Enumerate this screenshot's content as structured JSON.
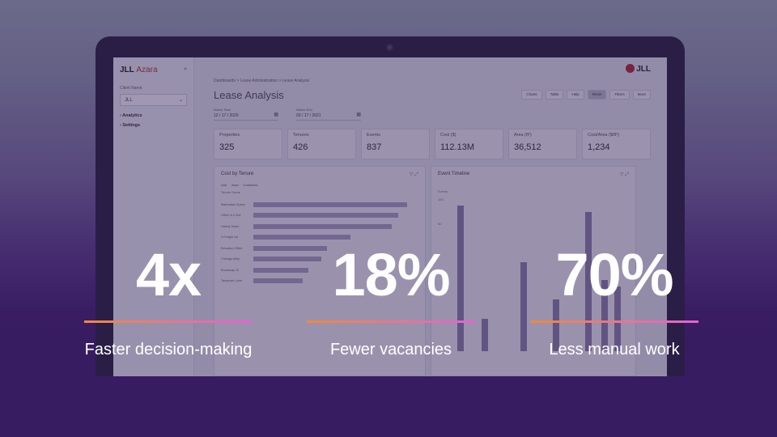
{
  "screen": {
    "app_brand": "JLL",
    "app_name": "Azara",
    "logo_text": "JLL",
    "sidebar": {
      "client_label": "Client Name",
      "client_value": "JLL",
      "items": [
        {
          "label": "Analytics"
        },
        {
          "label": "Settings"
        }
      ]
    },
    "breadcrumb": "Dashboards  >  Lease Administration  >  Lease Analysis",
    "page_title": "Lease Analysis",
    "toolbar": [
      {
        "label": "Charts"
      },
      {
        "label": "Table"
      },
      {
        "label": "Help"
      },
      {
        "label": "Reset"
      },
      {
        "label": "Filters"
      },
      {
        "label": "More"
      }
    ],
    "dates": [
      {
        "label": "Notice Start",
        "value": "12 / 17 / 2020"
      },
      {
        "label": "Notice End",
        "value": "03 / 17 / 2021"
      }
    ],
    "kpis": [
      {
        "label": "Properties",
        "value": "325"
      },
      {
        "label": "Tenures",
        "value": "426"
      },
      {
        "label": "Events",
        "value": "837"
      },
      {
        "label": "Cost ($)",
        "value": "112.13M"
      },
      {
        "label": "Area (ft²)",
        "value": "36,512"
      },
      {
        "label": "Cost/Area ($/ft²)",
        "value": "1,234"
      }
    ],
    "left_panel": {
      "title": "Cost by Tenure",
      "chips": [
        "Unit",
        "Area",
        "Cost/Area"
      ],
      "axis_caption": "Tenure Name",
      "bars": [
        {
          "label": "Manhattan Space",
          "value": 100
        },
        {
          "label": "Office in 4 2nd",
          "value": 94
        },
        {
          "label": "Liberty Tower",
          "value": 90
        },
        {
          "label": "3 Freight 1st",
          "value": 63
        },
        {
          "label": "Elevation Office",
          "value": 48
        },
        {
          "label": "Chicago Alley",
          "value": 44
        },
        {
          "label": "Broadway 10",
          "value": 36
        },
        {
          "label": "Tarrytown Lane",
          "value": 32
        }
      ]
    },
    "right_panel": {
      "title": "Event Timeline",
      "axis_caption": "Events",
      "ticks": [
        "100",
        "",
        "50"
      ],
      "bars": [
        {
          "value": 90
        },
        {
          "value": 20
        },
        {
          "value": 55
        },
        {
          "value": 32
        },
        {
          "value": 86
        },
        {
          "value": 44
        },
        {
          "value": 40
        }
      ]
    }
  },
  "stats": [
    {
      "value": "4x",
      "label": "Faster decision-making"
    },
    {
      "value": "18%",
      "label": "Fewer vacancies"
    },
    {
      "value": "70%",
      "label": "Less manual work"
    }
  ]
}
